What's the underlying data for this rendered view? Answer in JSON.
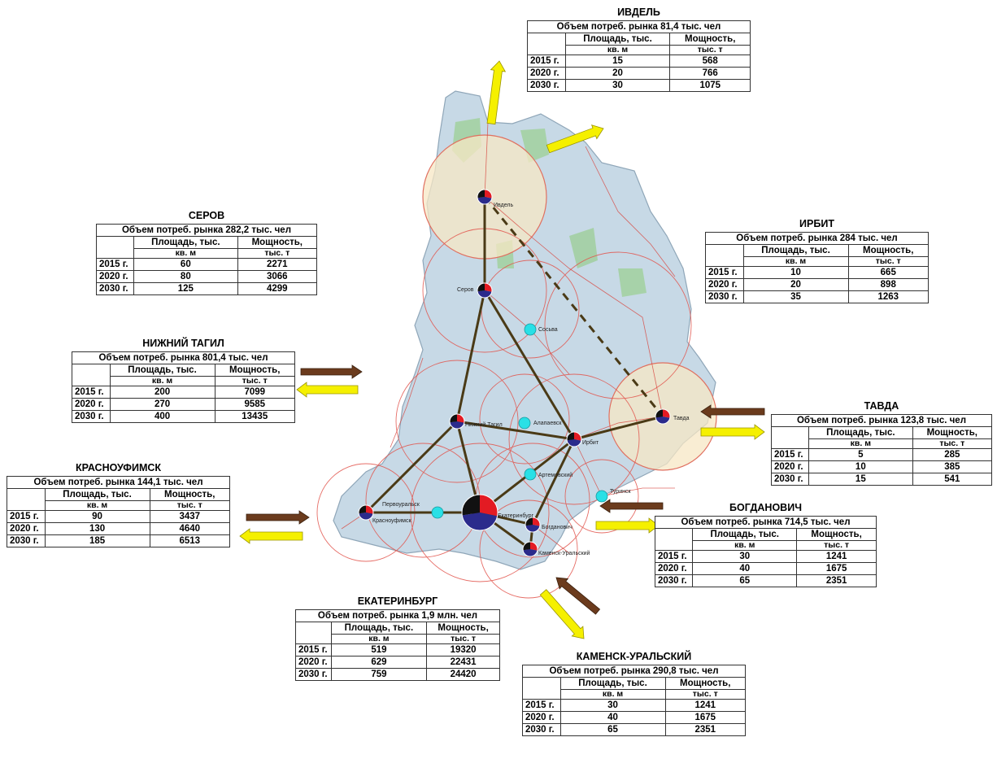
{
  "col_area": "Площадь, тыс.",
  "col_area_unit": "кв. м",
  "col_power": "Мощность,",
  "col_power_unit": "тыс. т",
  "years": [
    "2015 г.",
    "2020 г.",
    "2030 г."
  ],
  "cities": {
    "ivdel": {
      "name": "ИВДЕЛЬ",
      "market": "Объем потреб.  рынка 81,4 тыс. чел",
      "area": [
        "15",
        "20",
        "30"
      ],
      "power": [
        "568",
        "766",
        "1075"
      ]
    },
    "serov": {
      "name": "СЕРОВ",
      "market": "Объем потреб.  рынка 282,2 тыс. чел",
      "area": [
        "60",
        "80",
        "125"
      ],
      "power": [
        "2271",
        "3066",
        "4299"
      ]
    },
    "irbit": {
      "name": "ИРБИТ",
      "market": "Объем потреб.  рынка 284 тыс. чел",
      "area": [
        "10",
        "20",
        "35"
      ],
      "power": [
        "665",
        "898",
        "1263"
      ]
    },
    "ntagil": {
      "name": "НИЖНИЙ ТАГИЛ",
      "market": "Объем потреб.  рынка 801,4 тыс. чел",
      "area": [
        "200",
        "270",
        "400"
      ],
      "power": [
        "7099",
        "9585",
        "13435"
      ]
    },
    "tavda": {
      "name": "ТАВДА",
      "market": "Объем потреб.  рынка 123,8 тыс. чел",
      "area": [
        "5",
        "10",
        "15"
      ],
      "power": [
        "285",
        "385",
        "541"
      ]
    },
    "krasnoufimsk": {
      "name": "КРАСНОУФИМСК",
      "market": "Объем потреб.  рынка 144,1 тыс. чел",
      "area": [
        "90",
        "130",
        "185"
      ],
      "power": [
        "3437",
        "4640",
        "6513"
      ]
    },
    "bogdanovich": {
      "name": "БОГДАНОВИЧ",
      "market": "Объем потреб.  рынка 714,5 тыс. чел",
      "area": [
        "30",
        "40",
        "65"
      ],
      "power": [
        "1241",
        "1675",
        "2351"
      ]
    },
    "ekb": {
      "name": "ЕКАТЕРИНБУРГ",
      "market": "Объем потреб.  рынка 1,9 млн. чел",
      "area": [
        "519",
        "629",
        "759"
      ],
      "power": [
        "19320",
        "22431",
        "24420"
      ]
    },
    "kamensk": {
      "name": "КАМЕНСК-УРАЛЬСКИЙ",
      "market": "Объем потреб.  рынка 290,8 тыс. чел",
      "area": [
        "30",
        "40",
        "65"
      ],
      "power": [
        "1241",
        "1675",
        "2351"
      ]
    }
  },
  "map_labels": {
    "ivdel": "Ивдель",
    "serov": "Серов",
    "sosva": "Сосьва",
    "alapaevsk": "Алапаевск",
    "irbit": "Ирбит",
    "tavda": "Тавда",
    "ntagil": "Нижний Тагил",
    "artemovsky": "Артемовский",
    "pervouralsk": "Первоуральск",
    "krasnoufimsk": "Красноуфимск",
    "ekb": "Екатеринбург",
    "bogdanovich": "Богданович",
    "kamensk": "Каменск-Уральский",
    "turinsk": "Туринск"
  },
  "colors": {
    "pie_red": "#e31b23",
    "pie_blue": "#2b2b8c",
    "pie_black": "#111111",
    "node_cyan": "#29e0e6",
    "link": "#4a3a16",
    "arrow_in": "#6b3b1d",
    "arrow_out": "#f5f000",
    "zone_fill": "#f7e7c4",
    "zone_stroke": "#e07060",
    "region_fill": "#c7d9e6"
  }
}
